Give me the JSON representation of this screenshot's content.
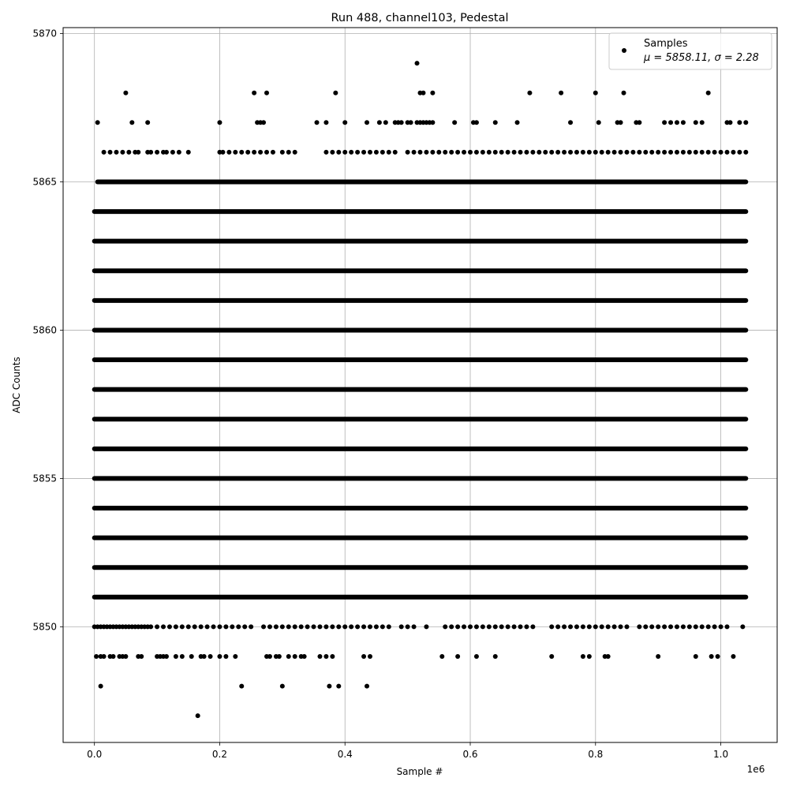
{
  "chart_data": {
    "type": "scatter",
    "title": "Run 488, channel103, Pedestal",
    "xlabel": "Sample #",
    "ylabel": "ADC Counts",
    "x_offset_label": "1e6",
    "xlim": [
      -0.05,
      1.09
    ],
    "ylim": [
      5846.1,
      5870.2
    ],
    "x_scale_note": "x values are in units of 1e6 samples",
    "grid": true,
    "legend_position": "upper right",
    "x_ticks": [
      {
        "value": 0.0,
        "label": "0.0"
      },
      {
        "value": 0.2,
        "label": "0.2"
      },
      {
        "value": 0.4,
        "label": "0.4"
      },
      {
        "value": 0.6,
        "label": "0.6"
      },
      {
        "value": 0.8,
        "label": "0.8"
      },
      {
        "value": 1.0,
        "label": "1.0"
      }
    ],
    "y_ticks": [
      {
        "value": 5850,
        "label": "5850"
      },
      {
        "value": 5855,
        "label": "5855"
      },
      {
        "value": 5860,
        "label": "5860"
      },
      {
        "value": 5865,
        "label": "5865"
      },
      {
        "value": 5870,
        "label": "5870"
      }
    ],
    "series": [
      {
        "name": "Samples",
        "stats_label": "μ = 5858.11, σ = 2.28",
        "color": "#000000",
        "dense_levels": [
          {
            "y": 5851,
            "x_range": [
              0.0,
              1.04
            ]
          },
          {
            "y": 5852,
            "x_range": [
              0.0,
              1.04
            ]
          },
          {
            "y": 5853,
            "x_range": [
              0.0,
              1.04
            ]
          },
          {
            "y": 5854,
            "x_range": [
              0.0,
              1.04
            ]
          },
          {
            "y": 5855,
            "x_range": [
              0.0,
              1.04
            ]
          },
          {
            "y": 5856,
            "x_range": [
              0.0,
              1.04
            ]
          },
          {
            "y": 5857,
            "x_range": [
              0.0,
              1.04
            ]
          },
          {
            "y": 5858,
            "x_range": [
              0.0,
              1.04
            ]
          },
          {
            "y": 5859,
            "x_range": [
              0.0,
              1.04
            ]
          },
          {
            "y": 5860,
            "x_range": [
              0.0,
              1.04
            ]
          },
          {
            "y": 5861,
            "x_range": [
              0.0,
              1.04
            ]
          },
          {
            "y": 5862,
            "x_range": [
              0.0,
              1.04
            ]
          },
          {
            "y": 5863,
            "x_range": [
              0.0,
              1.04
            ]
          },
          {
            "y": 5864,
            "x_range": [
              0.0,
              1.04
            ]
          },
          {
            "y": 5865,
            "x_range": [
              0.005,
              1.04
            ]
          }
        ],
        "sparse_points": [
          {
            "y": 5850,
            "x": [
              0.0,
              0.005,
              0.01,
              0.015,
              0.02,
              0.025,
              0.03,
              0.035,
              0.04,
              0.045,
              0.05,
              0.055,
              0.06,
              0.065,
              0.07,
              0.075,
              0.08,
              0.085,
              0.09,
              0.1,
              0.11,
              0.12,
              0.13,
              0.14,
              0.15,
              0.16,
              0.17,
              0.18,
              0.19,
              0.2,
              0.21,
              0.22,
              0.23,
              0.24,
              0.25,
              0.27,
              0.28,
              0.29,
              0.3,
              0.31,
              0.32,
              0.33,
              0.34,
              0.35,
              0.36,
              0.37,
              0.38,
              0.39,
              0.4,
              0.41,
              0.42,
              0.43,
              0.44,
              0.45,
              0.46,
              0.47,
              0.49,
              0.5,
              0.51,
              0.53,
              0.56,
              0.57,
              0.58,
              0.59,
              0.6,
              0.61,
              0.62,
              0.63,
              0.64,
              0.65,
              0.66,
              0.67,
              0.68,
              0.69,
              0.7,
              0.73,
              0.74,
              0.75,
              0.76,
              0.77,
              0.78,
              0.79,
              0.8,
              0.81,
              0.82,
              0.83,
              0.84,
              0.85,
              0.87,
              0.88,
              0.89,
              0.9,
              0.91,
              0.92,
              0.93,
              0.94,
              0.95,
              0.96,
              0.97,
              0.98,
              0.99,
              1.0,
              1.01,
              1.035
            ]
          },
          {
            "y": 5849,
            "x": [
              0.003,
              0.01,
              0.015,
              0.025,
              0.03,
              0.04,
              0.045,
              0.05,
              0.07,
              0.075,
              0.1,
              0.105,
              0.11,
              0.115,
              0.13,
              0.14,
              0.155,
              0.17,
              0.175,
              0.185,
              0.2,
              0.21,
              0.225,
              0.275,
              0.28,
              0.29,
              0.295,
              0.31,
              0.32,
              0.33,
              0.335,
              0.36,
              0.37,
              0.38,
              0.43,
              0.44,
              0.555,
              0.58,
              0.61,
              0.64,
              0.73,
              0.78,
              0.79,
              0.815,
              0.82,
              0.9,
              0.96,
              0.985,
              0.995,
              1.02
            ]
          },
          {
            "y": 5848,
            "x": [
              0.01,
              0.235,
              0.3,
              0.375,
              0.39,
              0.435
            ]
          },
          {
            "y": 5847,
            "x": [
              0.165
            ]
          },
          {
            "y": 5866,
            "x": [
              0.015,
              0.025,
              0.035,
              0.045,
              0.055,
              0.065,
              0.07,
              0.085,
              0.09,
              0.1,
              0.11,
              0.115,
              0.125,
              0.135,
              0.15,
              0.2,
              0.205,
              0.215,
              0.225,
              0.235,
              0.245,
              0.255,
              0.265,
              0.275,
              0.285,
              0.3,
              0.31,
              0.32,
              0.37,
              0.38,
              0.39,
              0.4,
              0.41,
              0.42,
              0.43,
              0.44,
              0.45,
              0.46,
              0.47,
              0.48,
              0.5,
              0.51,
              0.52,
              0.53,
              0.54,
              0.55,
              0.56,
              0.57,
              0.58,
              0.59,
              0.6,
              0.61,
              0.62,
              0.63,
              0.64,
              0.65,
              0.66,
              0.67,
              0.68,
              0.69,
              0.7,
              0.71,
              0.72,
              0.73,
              0.74,
              0.75,
              0.76,
              0.77,
              0.78,
              0.79,
              0.8,
              0.81,
              0.82,
              0.83,
              0.84,
              0.85,
              0.86,
              0.87,
              0.88,
              0.89,
              0.9,
              0.91,
              0.92,
              0.93,
              0.94,
              0.95,
              0.96,
              0.97,
              0.98,
              0.99,
              1.0,
              1.01,
              1.02,
              1.03,
              1.04
            ]
          },
          {
            "y": 5867,
            "x": [
              0.005,
              0.06,
              0.085,
              0.2,
              0.26,
              0.265,
              0.27,
              0.355,
              0.37,
              0.4,
              0.435,
              0.455,
              0.465,
              0.48,
              0.485,
              0.49,
              0.5,
              0.505,
              0.515,
              0.52,
              0.525,
              0.53,
              0.535,
              0.54,
              0.575,
              0.605,
              0.61,
              0.64,
              0.675,
              0.76,
              0.805,
              0.835,
              0.84,
              0.865,
              0.87,
              0.91,
              0.92,
              0.93,
              0.94,
              0.96,
              0.97,
              1.01,
              1.015,
              1.03,
              1.04
            ]
          },
          {
            "y": 5868,
            "x": [
              0.05,
              0.255,
              0.275,
              0.385,
              0.52,
              0.525,
              0.54,
              0.695,
              0.745,
              0.8,
              0.845,
              0.98
            ]
          },
          {
            "y": 5869,
            "x": [
              0.515
            ]
          }
        ]
      }
    ]
  }
}
